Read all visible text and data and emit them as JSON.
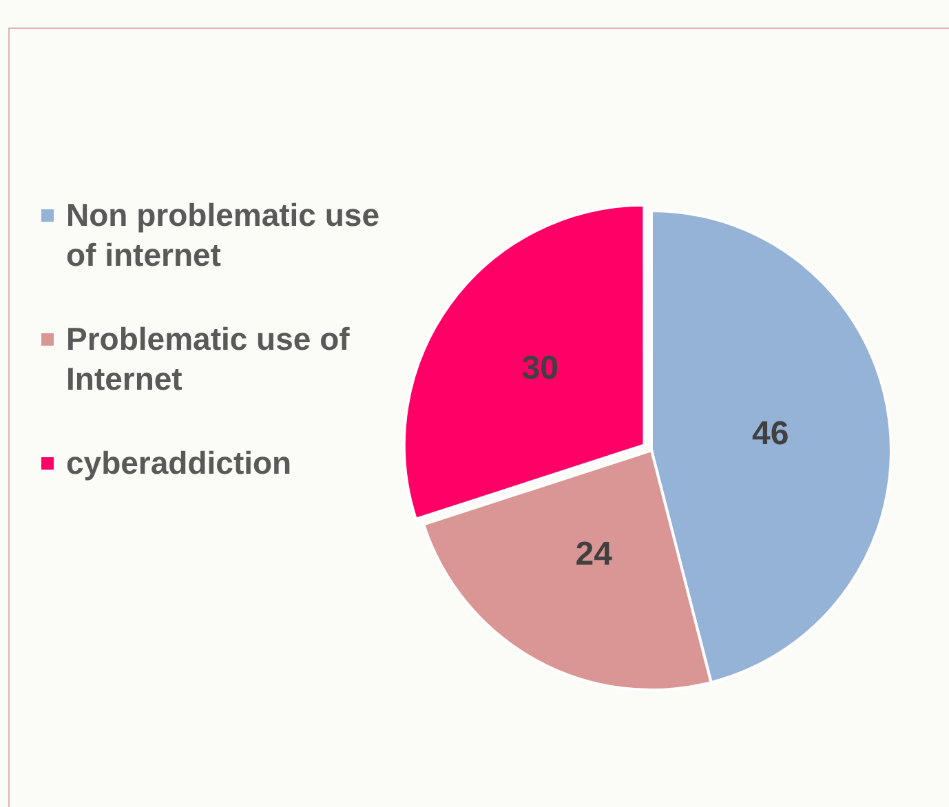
{
  "chart_data": {
    "type": "pie",
    "categories": [
      "Non problematic use of internet",
      "Problematic use of Internet",
      "cyberaddiction"
    ],
    "values": [
      46,
      24,
      30
    ],
    "colors": [
      "#95b3d7",
      "#d99694",
      "#ff0066"
    ],
    "data_labels": true,
    "legend": "left"
  }
}
